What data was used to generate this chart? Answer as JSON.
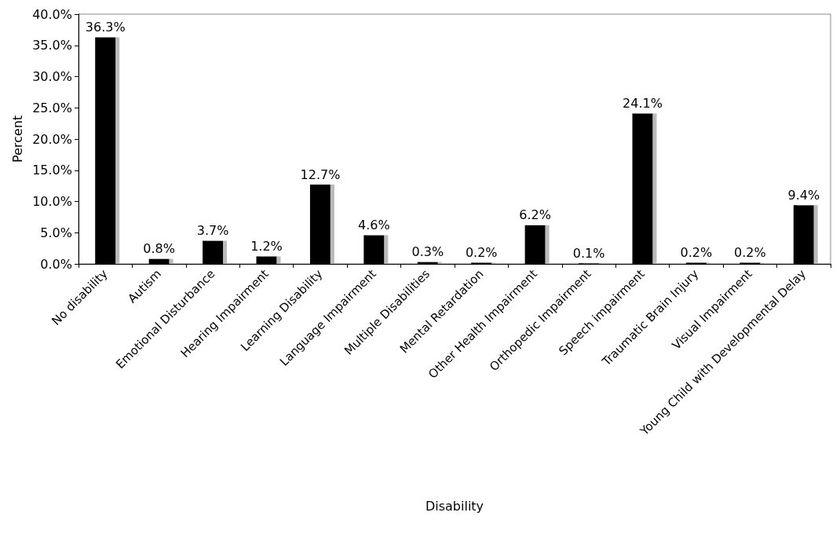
{
  "chart_data": {
    "type": "bar",
    "xlabel": "Disability",
    "ylabel": "Percent",
    "categories": [
      "No disability",
      "Autism",
      "Emotional Disturbance",
      "Hearing Impairment",
      "Learning Disability",
      "Language Impairment",
      "Multiple Disabilities",
      "Mental Retardation",
      "Other Health Impairment",
      "Orthopedic Impairment",
      "Speech impairment",
      "Traumatic Brain Injury",
      "Visual Impairment",
      "Young Child with Developmental Delay"
    ],
    "values": [
      36.3,
      0.8,
      3.7,
      1.2,
      12.7,
      4.6,
      0.3,
      0.2,
      6.2,
      0.1,
      24.1,
      0.2,
      0.2,
      9.4
    ],
    "value_labels": [
      "36.3%",
      "0.8%",
      "3.7%",
      "1.2%",
      "12.7%",
      "4.6%",
      "0.3%",
      "0.2%",
      "6.2%",
      "0.1%",
      "24.1%",
      "0.2%",
      "0.2%",
      "9.4%"
    ],
    "color": "#000000",
    "ylim": [
      0,
      40
    ],
    "yticks": [
      {
        "value": 0,
        "label": "0.0%"
      },
      {
        "value": 5,
        "label": "5.0%"
      },
      {
        "value": 10,
        "label": "10.0%"
      },
      {
        "value": 15,
        "label": "15.0%"
      },
      {
        "value": 20,
        "label": "20.0%"
      },
      {
        "value": 25,
        "label": "25.0%"
      },
      {
        "value": 30,
        "label": "30.0%"
      },
      {
        "value": 35,
        "label": "35.0%"
      },
      {
        "value": 40,
        "label": "40.0%"
      }
    ],
    "grid": false
  }
}
